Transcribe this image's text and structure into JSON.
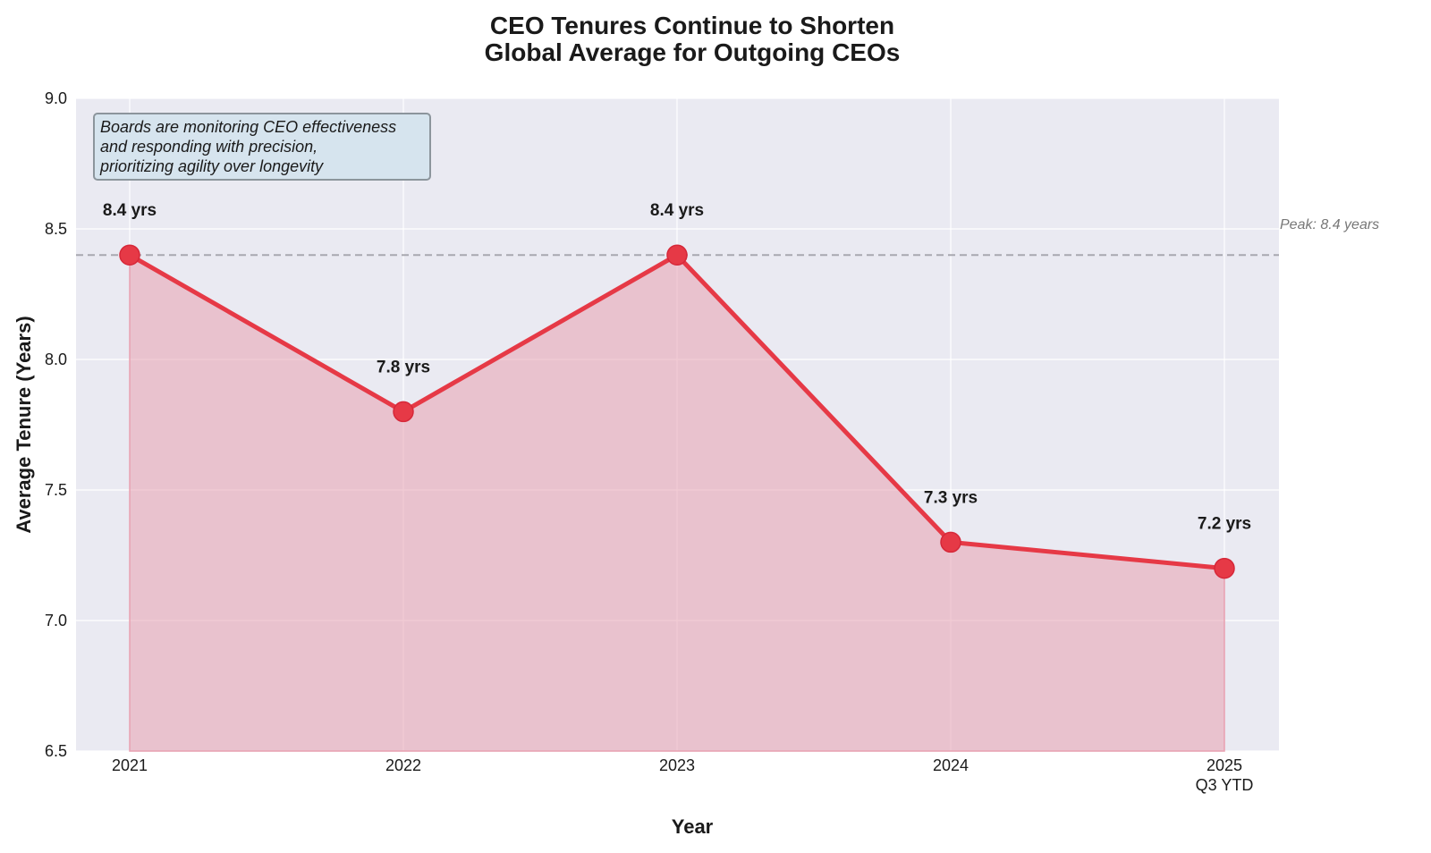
{
  "chart_data": {
    "type": "area",
    "title": "CEO Tenures Continue to Shorten",
    "subtitle": "Global Average for Outgoing CEOs",
    "xlabel": "Year",
    "ylabel": "Average Tenure (Years)",
    "categories": [
      "2021",
      "2022",
      "2023",
      "2024",
      "2025"
    ],
    "category_sublabels": [
      "",
      "",
      "",
      "",
      "Q3 YTD"
    ],
    "values": [
      8.4,
      7.8,
      8.4,
      7.3,
      7.2
    ],
    "data_labels": [
      "8.4 yrs",
      "7.8 yrs",
      "8.4 yrs",
      "7.3 yrs",
      "7.2 yrs"
    ],
    "ylim": [
      6.5,
      9.0
    ],
    "yticks": [
      6.5,
      7.0,
      7.5,
      8.0,
      8.5,
      9.0
    ],
    "ytick_labels": [
      "6.5",
      "7.0",
      "7.5",
      "8.0",
      "8.5",
      "9.0"
    ],
    "grid": true,
    "reference_line": {
      "value": 8.4,
      "label": "Peak: 8.4 years",
      "style": "dashed"
    },
    "annotation": {
      "lines": [
        "Boards are monitoring CEO effectiveness",
        "and responding with precision,",
        "prioritizing agility over longevity"
      ],
      "placement": "top-left"
    },
    "colors": {
      "line": "#e63946",
      "fill": "#e8a0b0",
      "plot_background": "#eaeaf2",
      "grid": "#ffffff",
      "reference_line": "#a8a8b0",
      "annotation_background": "#d6e4ee",
      "annotation_border": "#8c959c"
    }
  }
}
